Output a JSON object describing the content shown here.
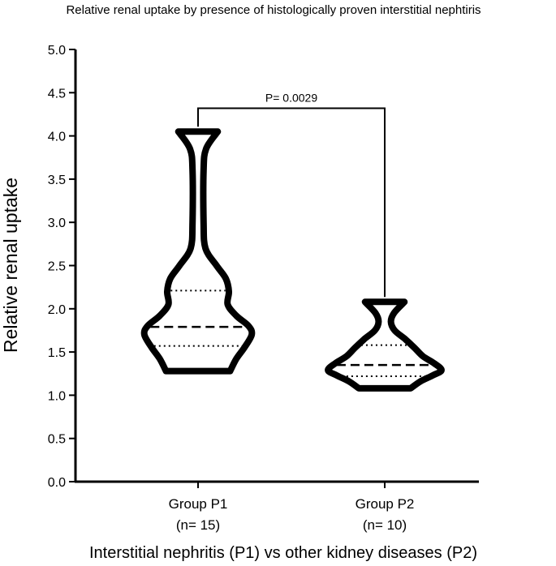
{
  "chart_data": {
    "type": "violin",
    "title": "Relative renal uptake by presence of histologically proven interstitial nephtiris",
    "xlabel": "Interstitial nephritis (P1) vs other kidney diseases (P2)",
    "ylabel": "Relative renal uptake",
    "ylim": [
      0,
      5
    ],
    "yticks": [
      "0.0",
      "0.5",
      "1.0",
      "1.5",
      "2.0",
      "2.5",
      "3.0",
      "3.5",
      "4.0",
      "4.5",
      "5.0"
    ],
    "grid": false,
    "categories": [
      {
        "name": "Group P1",
        "n_label": "(n= 15)"
      },
      {
        "name": "Group P2",
        "n_label": "(n= 10)"
      }
    ],
    "series": [
      {
        "min": 1.28,
        "max": 4.05,
        "q1": 1.57,
        "median": 1.79,
        "q3": 2.21,
        "profile": [
          [
            1.28,
            0.52
          ],
          [
            1.42,
            0.62
          ],
          [
            1.55,
            0.75
          ],
          [
            1.7,
            0.87
          ],
          [
            1.8,
            0.82
          ],
          [
            1.92,
            0.62
          ],
          [
            2.05,
            0.48
          ],
          [
            2.2,
            0.5
          ],
          [
            2.35,
            0.45
          ],
          [
            2.5,
            0.3
          ],
          [
            2.7,
            0.12
          ],
          [
            3.0,
            0.09
          ],
          [
            3.6,
            0.09
          ],
          [
            3.85,
            0.13
          ],
          [
            4.05,
            0.32
          ]
        ]
      },
      {
        "min": 1.08,
        "max": 2.08,
        "q1": 1.22,
        "median": 1.35,
        "q3": 1.58,
        "profile": [
          [
            1.08,
            0.42
          ],
          [
            1.16,
            0.58
          ],
          [
            1.23,
            0.78
          ],
          [
            1.29,
            0.92
          ],
          [
            1.37,
            0.8
          ],
          [
            1.45,
            0.62
          ],
          [
            1.55,
            0.48
          ],
          [
            1.65,
            0.33
          ],
          [
            1.75,
            0.16
          ],
          [
            1.85,
            0.1
          ],
          [
            1.95,
            0.15
          ],
          [
            2.08,
            0.32
          ]
        ]
      }
    ],
    "annotation": {
      "label": "P= 0.0029",
      "y": 4.32
    }
  }
}
